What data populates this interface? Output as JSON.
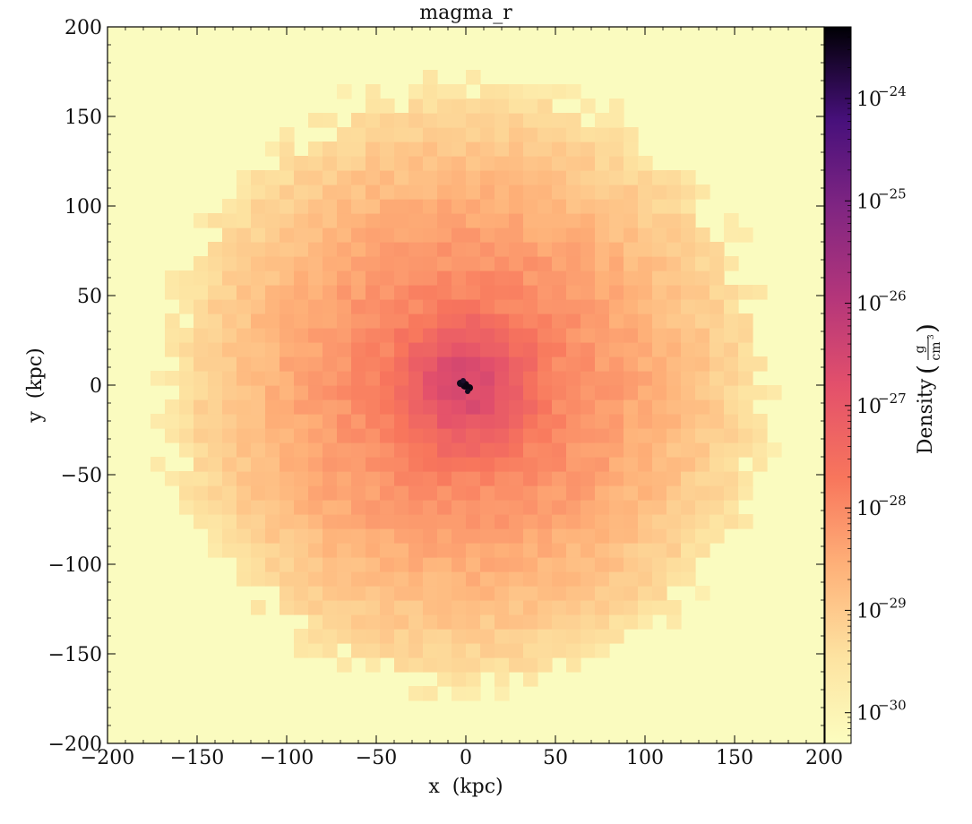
{
  "chart_data": {
    "type": "heatmap",
    "title": "magma_r",
    "xlabel": "x  (kpc)",
    "ylabel": "y  (kpc)",
    "xlim": [
      -200,
      200
    ],
    "ylim": [
      -200,
      200
    ],
    "xticks": [
      -200,
      -150,
      -100,
      -50,
      0,
      50,
      100,
      150,
      200
    ],
    "yticks": [
      -200,
      -150,
      -100,
      -50,
      0,
      50,
      100,
      150,
      200
    ],
    "xtick_labels": [
      "−200",
      "−150",
      "−100",
      "−50",
      "0",
      "50",
      "100",
      "150",
      "200"
    ],
    "ytick_labels": [
      "−200",
      "−150",
      "−100",
      "−50",
      "0",
      "50",
      "100",
      "150",
      "200"
    ],
    "colormap": "magma_r",
    "colorbar": {
      "label": "Density",
      "unit_numerator": "g",
      "unit_denominator": "cm",
      "unit_denominator_exponent": "3",
      "scale": "log",
      "log_range": [
        -30.3,
        -23.3
      ],
      "tick_exponents": [
        -30,
        -29,
        -28,
        -27,
        -26,
        -25,
        -24
      ],
      "tick_base": "10",
      "tick_labels": [
        "−30",
        "−29",
        "−28",
        "−27",
        "−26",
        "−25",
        "−24"
      ]
    },
    "field": {
      "description_values_log10_density": {
        "center": -23.5,
        "inner_10kpc": -26.6,
        "r_50kpc": -27.9,
        "r_100kpc": -28.5,
        "r_150kpc": -29.2,
        "outside_175kpc": -30.3
      },
      "halo_radius_kpc": 168
    },
    "grid": false,
    "legend": "none"
  }
}
